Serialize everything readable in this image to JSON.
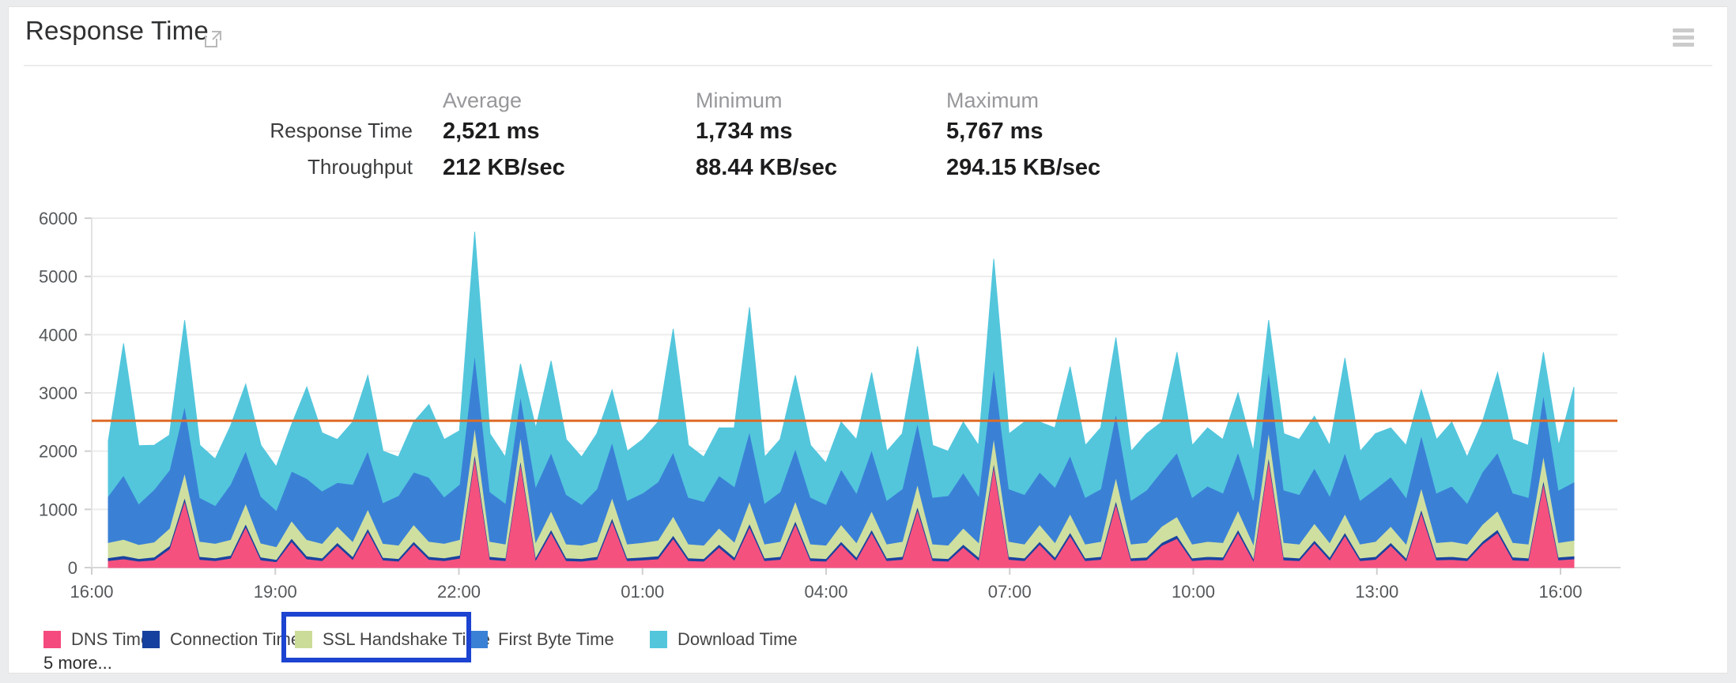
{
  "header": {
    "title": "Response Time"
  },
  "stats": {
    "column_headers": [
      "Average",
      "Minimum",
      "Maximum"
    ],
    "rows": [
      {
        "label": "Response Time",
        "average": "2,521 ms",
        "minimum": "1,734 ms",
        "maximum": "5,767 ms"
      },
      {
        "label": "Throughput",
        "average": "212 KB/sec",
        "minimum": "88.44 KB/sec",
        "maximum": "294.15 KB/sec"
      }
    ]
  },
  "legend": {
    "items": [
      {
        "label": "DNS Time",
        "color": "#f54a7e"
      },
      {
        "label": "Connection Time",
        "color": "#17419e"
      },
      {
        "label": "SSL Handshake Time",
        "color": "#cbdc98"
      },
      {
        "label": "First Byte Time",
        "color": "#3a81d6"
      },
      {
        "label": "Download Time",
        "color": "#53c6dc"
      }
    ],
    "more_label": "5 more...",
    "highlighted_item": "SSL Handshake Time",
    "highlight_color": "#1c44d1"
  },
  "chart_data": {
    "type": "area",
    "stacked": true,
    "unit": "ms",
    "interval_minutes": 15,
    "x_tick_labels": [
      "16:00",
      "19:00",
      "22:00",
      "01:00",
      "04:00",
      "07:00",
      "10:00",
      "13:00",
      "16:00"
    ],
    "y_ticks": [
      0,
      1000,
      2000,
      3000,
      4000,
      5000,
      6000
    ],
    "ylim": [
      0,
      6000
    ],
    "grid": true,
    "legend_position": "bottom",
    "average_line": {
      "value": 2521,
      "color": "#dd6b28"
    },
    "series": [
      {
        "name": "DNS Time",
        "color": "#f5517f",
        "values": [
          120,
          150,
          110,
          130,
          320,
          1150,
          140,
          120,
          160,
          700,
          130,
          100,
          450,
          150,
          120,
          380,
          140,
          620,
          130,
          110,
          400,
          140,
          120,
          160,
          1900,
          140,
          120,
          1800,
          130,
          600,
          120,
          110,
          140,
          800,
          120,
          130,
          150,
          500,
          120,
          110,
          350,
          130,
          700,
          120,
          140,
          750,
          120,
          110,
          400,
          130,
          600,
          120,
          140,
          1000,
          120,
          110,
          350,
          130,
          1750,
          140,
          120,
          400,
          130,
          550,
          120,
          140,
          1100,
          120,
          130,
          380,
          500,
          120,
          140,
          130,
          600,
          120,
          1850,
          130,
          120,
          420,
          130,
          550,
          120,
          140,
          380,
          120,
          950,
          130,
          140,
          120,
          400,
          600,
          130,
          120,
          1450,
          130,
          150
        ]
      },
      {
        "name": "Connection Time",
        "color": "#1a43a0",
        "values": [
          50,
          55,
          45,
          50,
          55,
          60,
          50,
          45,
          50,
          55,
          50,
          40,
          55,
          50,
          45,
          50,
          50,
          55,
          45,
          45,
          50,
          50,
          45,
          50,
          65,
          50,
          45,
          55,
          50,
          55,
          45,
          45,
          50,
          55,
          45,
          50,
          50,
          55,
          45,
          45,
          50,
          50,
          60,
          45,
          50,
          55,
          45,
          45,
          50,
          50,
          55,
          45,
          50,
          55,
          45,
          45,
          50,
          50,
          60,
          50,
          45,
          50,
          50,
          55,
          45,
          50,
          55,
          45,
          50,
          50,
          55,
          45,
          50,
          50,
          55,
          45,
          60,
          50,
          45,
          50,
          50,
          55,
          45,
          50,
          50,
          45,
          55,
          50,
          50,
          45,
          50,
          55,
          50,
          45,
          60,
          50,
          50
        ]
      },
      {
        "name": "SSL Handshake Time",
        "color": "#cfdfa0",
        "values": [
          260,
          280,
          240,
          260,
          300,
          420,
          260,
          250,
          270,
          350,
          240,
          220,
          300,
          280,
          250,
          280,
          260,
          330,
          240,
          230,
          290,
          260,
          250,
          270,
          460,
          260,
          240,
          400,
          260,
          320,
          240,
          230,
          260,
          350,
          240,
          250,
          270,
          330,
          240,
          230,
          280,
          260,
          380,
          240,
          260,
          340,
          240,
          230,
          290,
          250,
          320,
          240,
          260,
          380,
          240,
          230,
          280,
          250,
          430,
          260,
          240,
          290,
          250,
          320,
          240,
          260,
          400,
          240,
          250,
          280,
          320,
          240,
          260,
          250,
          330,
          240,
          430,
          250,
          240,
          290,
          250,
          320,
          240,
          260,
          280,
          240,
          370,
          250,
          260,
          240,
          290,
          320,
          250,
          240,
          420,
          250,
          270
        ]
      },
      {
        "name": "First Byte Time",
        "color": "#3a81d6",
        "values": [
          800,
          1100,
          700,
          900,
          1000,
          1150,
          750,
          650,
          950,
          900,
          800,
          624,
          850,
          1050,
          900,
          750,
          980,
          1000,
          700,
          850,
          900,
          1100,
          800,
          950,
          1250,
          850,
          700,
          700,
          950,
          1000,
          850,
          700,
          900,
          950,
          750,
          850,
          1000,
          1100,
          800,
          750,
          900,
          950,
          1200,
          700,
          850,
          900,
          800,
          700,
          950,
          850,
          1050,
          750,
          900,
          1050,
          800,
          850,
          950,
          800,
          1200,
          900,
          850,
          900,
          950,
          1000,
          800,
          900,
          1100,
          750,
          900,
          950,
          1100,
          800,
          950,
          850,
          1000,
          750,
          1050,
          900,
          850,
          950,
          800,
          1050,
          750,
          900,
          850,
          800,
          900,
          850,
          950,
          700,
          900,
          1000,
          850,
          800,
          1050,
          900,
          1000
        ]
      },
      {
        "name": "Download Time",
        "color": "#53c6dc",
        "values": [
          950,
          2265,
          1000,
          760,
          600,
          1470,
          900,
          800,
          1000,
          1145,
          880,
          750,
          800,
          1570,
          1000,
          740,
          1070,
          1295,
          885,
          665,
          860,
          1250,
          985,
          920,
          2092,
          1000,
          795,
          545,
          1010,
          1575,
          945,
          815,
          950,
          895,
          845,
          920,
          1030,
          2115,
          895,
          765,
          820,
          1010,
          2130,
          795,
          900,
          1255,
          895,
          715,
          810,
          920,
          1325,
          845,
          950,
          1315,
          895,
          765,
          870,
          870,
          1860,
          950,
          1245,
          860,
          1020,
          1525,
          895,
          1050,
          1295,
          845,
          970,
          840,
          1725,
          895,
          1000,
          920,
          1015,
          845,
          860,
          970,
          945,
          890,
          870,
          1625,
          845,
          950,
          840,
          895,
          775,
          920,
          1100,
          795,
          860,
          1375,
          920,
          895,
          720,
          770,
          1630
        ]
      }
    ]
  }
}
